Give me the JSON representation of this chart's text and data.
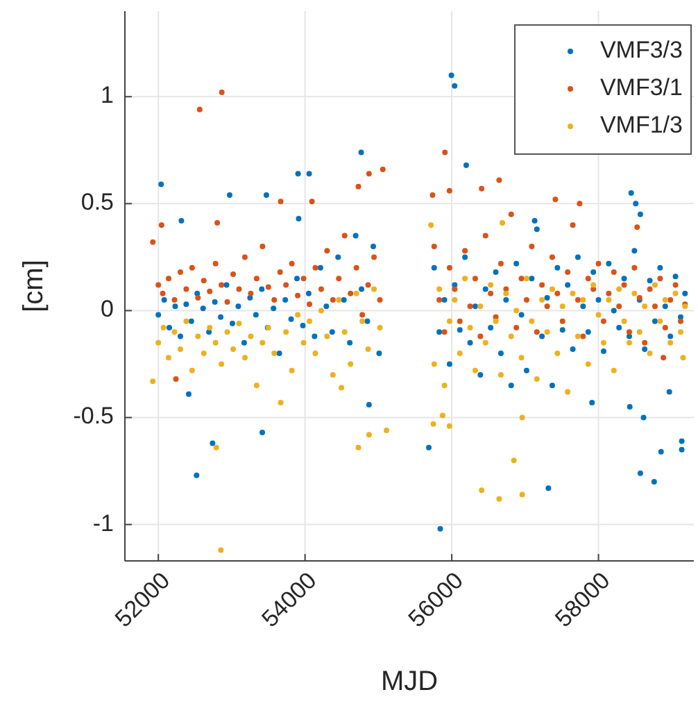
{
  "chart_data": {
    "type": "scatter",
    "xlabel": "MJD",
    "ylabel": "[cm]",
    "xlim": [
      51544,
      59300
    ],
    "xticks": [
      52000,
      54000,
      56000,
      58000
    ],
    "ylim": [
      -1.17,
      1.4
    ],
    "yticks": [
      -1,
      -0.5,
      0,
      0.5,
      1
    ],
    "grid": true,
    "legend": "top right",
    "marker": "circle",
    "series": [
      {
        "name": "VMF3/3",
        "color": "#0072bd",
        "x": [
          52038,
          52521,
          52414,
          52314,
          52739,
          52972,
          53417,
          53473,
          53905,
          54056,
          53913,
          54765,
          54872,
          55843,
          55995,
          56039,
          56197,
          57317,
          58446,
          58508,
          58571,
          58427,
          58615,
          58571,
          58759,
          58853,
          59135,
          59135,
          58966,
          55687,
          57912,
          57130,
          52000,
          52080,
          52150,
          52230,
          52300,
          52380,
          52450,
          52530,
          52610,
          52690,
          52770,
          52850,
          52930,
          53010,
          53090,
          53170,
          53250,
          53330,
          53410,
          53490,
          53570,
          53650,
          53730,
          53810,
          53890,
          53970,
          54050,
          54130,
          54210,
          54290,
          54370,
          54450,
          54530,
          54610,
          54690,
          54770,
          54850,
          54930,
          55010,
          55760,
          55830,
          55900,
          55970,
          56040,
          56110,
          56180,
          56250,
          56320,
          56390,
          56460,
          56530,
          56600,
          56670,
          56740,
          56810,
          56880,
          56950,
          57020,
          57090,
          57160,
          57230,
          57300,
          57370,
          57440,
          57510,
          57580,
          57650,
          57720,
          57790,
          57860,
          57930,
          58000,
          58070,
          58140,
          58210,
          58280,
          58350,
          58420,
          58490,
          58560,
          58630,
          58700,
          58770,
          58840,
          58910,
          58980,
          59050,
          59120,
          59180
        ],
        "values": [
          0.59,
          -0.77,
          -0.39,
          0.42,
          -0.62,
          0.54,
          -0.57,
          0.54,
          0.64,
          0.64,
          0.43,
          0.74,
          -0.44,
          -1.02,
          1.1,
          1.05,
          0.68,
          -0.83,
          0.55,
          0.5,
          0.45,
          -0.45,
          -0.5,
          -0.76,
          -0.8,
          -0.66,
          -0.61,
          -0.65,
          -0.38,
          -0.64,
          -0.43,
          0.42,
          -0.02,
          0.05,
          -0.08,
          0.02,
          -0.12,
          0.03,
          -0.05,
          0.08,
          0.01,
          -0.1,
          0.04,
          -0.03,
          0.12,
          -0.06,
          0.02,
          -0.15,
          0.06,
          -0.02,
          0.1,
          -0.08,
          0.01,
          -0.2,
          0.05,
          -0.04,
          0.15,
          -0.07,
          0.08,
          -0.12,
          0.2,
          0.02,
          -0.1,
          0.25,
          0.05,
          -0.15,
          0.35,
          0.1,
          -0.05,
          0.3,
          -0.2,
          0.2,
          -0.1,
          0.05,
          -0.25,
          0.12,
          -0.09,
          0.25,
          -0.15,
          0.02,
          -0.3,
          0.1,
          -0.08,
          0.18,
          -0.2,
          0.05,
          -0.35,
          0.22,
          -0.02,
          -0.28,
          0.15,
          0.38,
          -0.12,
          0.06,
          -0.35,
          0.2,
          -0.09,
          0.12,
          -0.18,
          0.25,
          0.02,
          -0.1,
          0.18,
          0.05,
          -0.19,
          0.22,
          0,
          -0.08,
          0.15,
          -0.12,
          0.28,
          0.05,
          -0.18,
          0.14,
          -0.05,
          0.2,
          0.02,
          -0.12,
          0.16,
          -0.03,
          0.08
        ]
      },
      {
        "name": "VMF3/1",
        "color": "#d95319",
        "x": [
          52564,
          52865,
          52044,
          51925,
          52239,
          52803,
          53668,
          54094,
          54727,
          54872,
          55060,
          55907,
          55969,
          56646,
          56407,
          55738,
          57412,
          57743,
          58527,
          58885,
          52000,
          52060,
          52140,
          52220,
          52300,
          52380,
          52460,
          52540,
          52620,
          52700,
          52780,
          52860,
          52940,
          53020,
          53100,
          53180,
          53260,
          53340,
          53420,
          53500,
          53580,
          53660,
          53740,
          53820,
          53900,
          53980,
          54060,
          54140,
          54220,
          54300,
          54380,
          54460,
          54540,
          54620,
          54700,
          54780,
          54860,
          54940,
          55020,
          55760,
          55830,
          55900,
          55970,
          56040,
          56110,
          56180,
          56250,
          56320,
          56390,
          56460,
          56530,
          56600,
          56670,
          56740,
          56810,
          56880,
          56950,
          57020,
          57090,
          57160,
          57230,
          57300,
          57370,
          57440,
          57510,
          57580,
          57650,
          57720,
          57790,
          57860,
          57930,
          58000,
          58070,
          58140,
          58210,
          58280,
          58350,
          58420,
          58490,
          58560,
          58630,
          58700,
          58770,
          58840,
          58910,
          58980,
          59050,
          59120,
          59180
        ],
        "values": [
          0.94,
          1.02,
          0.4,
          0.32,
          -0.32,
          0.41,
          0.51,
          0.51,
          0.58,
          0.64,
          0.66,
          0.74,
          0.56,
          0.61,
          0.57,
          0.54,
          0.52,
          0.5,
          0.39,
          -0.22,
          0.12,
          0.08,
          0.15,
          0.05,
          0.18,
          0.1,
          0.2,
          0.06,
          0.14,
          0.09,
          0.22,
          0.12,
          0.04,
          0.17,
          0.1,
          0.25,
          0.08,
          0.15,
          0.3,
          0.11,
          0.05,
          0.18,
          0.12,
          0.22,
          0.07,
          0.15,
          0.03,
          0.2,
          0.1,
          0.28,
          0.05,
          0.15,
          0.35,
          0.08,
          0.2,
          -0.02,
          0.12,
          0.25,
          0.05,
          0.3,
          0.05,
          -0.1,
          0.2,
          0.1,
          -0.05,
          0.28,
          0.02,
          0.15,
          -0.12,
          0.35,
          0.08,
          -0.03,
          0.22,
          0.1,
          0.45,
          -0.08,
          0.15,
          0.05,
          0.3,
          -0.1,
          0.12,
          0.02,
          0.25,
          0.08,
          -0.05,
          0.18,
          0.4,
          0.05,
          -0.12,
          0.15,
          0.1,
          0.22,
          -0.05,
          0.08,
          0.18,
          0.02,
          0.12,
          -0.1,
          0.2,
          0.06,
          -0.15,
          0.1,
          0.02,
          0.15,
          -0.08,
          0.05,
          0.12,
          -0.05,
          0.03
        ]
      },
      {
        "name": "VMF1/3",
        "color": "#edb120",
        "x": [
          52852,
          51925,
          52790,
          54727,
          54872,
          55110,
          56407,
          56646,
          56960,
          56847,
          55749,
          55969,
          55875,
          56960,
          53668,
          54496,
          59153,
          55717,
          56690,
          52000,
          52070,
          52140,
          52220,
          52300,
          52380,
          52460,
          52540,
          52620,
          52700,
          52780,
          52860,
          52940,
          53020,
          53100,
          53180,
          53260,
          53340,
          53420,
          53500,
          53580,
          53740,
          53820,
          53900,
          53980,
          54060,
          54140,
          54220,
          54300,
          54380,
          54460,
          54540,
          54620,
          54700,
          54780,
          54860,
          54940,
          55020,
          55760,
          55830,
          55900,
          55970,
          56040,
          56110,
          56180,
          56250,
          56320,
          56390,
          56460,
          56530,
          56600,
          56670,
          56740,
          56810,
          56880,
          56950,
          57020,
          57090,
          57160,
          57230,
          57300,
          57370,
          57440,
          57510,
          57580,
          57650,
          57720,
          57790,
          57860,
          57930,
          58000,
          58070,
          58140,
          58210,
          58280,
          58350,
          58420,
          58490,
          58560,
          58630,
          58700,
          58770,
          58840,
          58910,
          58980,
          59050,
          59120,
          59180
        ],
        "values": [
          -1.12,
          -0.33,
          -0.64,
          -0.64,
          -0.58,
          -0.56,
          -0.84,
          -0.88,
          -0.86,
          -0.7,
          -0.53,
          -0.54,
          -0.49,
          -0.5,
          -0.43,
          -0.36,
          -0.22,
          0.4,
          0.41,
          -0.15,
          -0.08,
          -0.22,
          -0.1,
          -0.18,
          -0.05,
          -0.28,
          -0.12,
          -0.2,
          -0.08,
          -0.15,
          -0.25,
          -0.1,
          -0.18,
          -0.06,
          -0.22,
          -0.12,
          -0.35,
          -0.15,
          -0.08,
          -0.2,
          -0.1,
          -0.28,
          -0.02,
          -0.15,
          -0.05,
          -0.2,
          0,
          -0.12,
          -0.3,
          0.05,
          -0.1,
          -0.25,
          0.08,
          -0.05,
          -0.18,
          0.1,
          -0.08,
          -0.25,
          0.1,
          -0.35,
          -0.05,
          0.05,
          -0.2,
          0.15,
          -0.08,
          -0.28,
          0.02,
          -0.15,
          0.12,
          -0.05,
          -0.3,
          0.08,
          -0.12,
          0,
          -0.22,
          0.15,
          -0.05,
          -0.32,
          0.05,
          -0.1,
          0.1,
          -0.2,
          0.02,
          -0.38,
          0.08,
          -0.12,
          0.05,
          -0.25,
          0.12,
          -0.02,
          -0.15,
          0.05,
          -0.28,
          0.1,
          -0.05,
          -0.15,
          0.08,
          -0.1,
          0.02,
          -0.2,
          0.12,
          -0.05,
          0.05,
          -0.15,
          0.08,
          -0.1,
          0.02
        ]
      }
    ]
  }
}
